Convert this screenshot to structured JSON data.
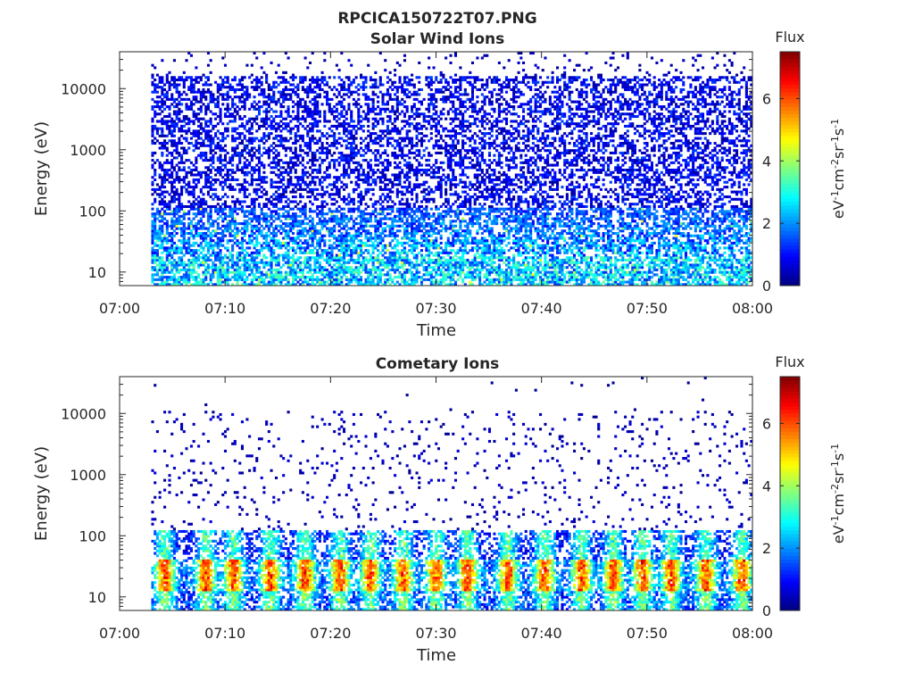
{
  "figure": {
    "title": "RPCICA150722T07.PNG"
  },
  "chart_data": [
    {
      "type": "heatmap",
      "title": "Solar Wind Ions",
      "xlabel": "Time",
      "ylabel": "Energy (eV)",
      "x_range": [
        "07:00",
        "08:00"
      ],
      "data_start": "07:03",
      "x_ticks": [
        "07:00",
        "07:10",
        "07:20",
        "07:30",
        "07:40",
        "07:50",
        "08:00"
      ],
      "y_scale": "log",
      "y_range": [
        6,
        40000
      ],
      "y_ticks": [
        10,
        100,
        1000,
        10000
      ],
      "colorbar": {
        "title": "Flux",
        "label": "eV-1cm-2sr-1s-1",
        "range": [
          0,
          7.5
        ],
        "ticks": [
          0,
          2,
          4,
          6
        ],
        "colormap": "jet"
      },
      "pattern": "sparse low flux (0-2) across all energies, moderate flux (2-4) below ~100 eV"
    },
    {
      "type": "heatmap",
      "title": "Cometary Ions",
      "xlabel": "Time",
      "ylabel": "Energy (eV)",
      "x_range": [
        "07:00",
        "08:00"
      ],
      "data_start": "07:03",
      "x_ticks": [
        "07:00",
        "07:10",
        "07:20",
        "07:30",
        "07:40",
        "07:50",
        "08:00"
      ],
      "y_scale": "log",
      "y_range": [
        6,
        40000
      ],
      "y_ticks": [
        10,
        100,
        1000,
        10000
      ],
      "colorbar": {
        "title": "Flux",
        "label": "eV-1cm-2sr-1s-1",
        "range": [
          0,
          7.5
        ],
        "ticks": [
          0,
          2,
          4,
          6
        ],
        "colormap": "jet"
      },
      "peak_times_min": [
        4.3,
        8.2,
        10.8,
        14.3,
        17.6,
        20.9,
        23.8,
        26.9,
        30.0,
        33.0,
        36.8,
        40.3,
        43.8,
        46.8,
        49.6,
        52.3,
        55.6,
        59.0
      ],
      "peak_energy_ev": 25,
      "peak_flux": 5.5,
      "pattern": "periodic intense bursts at 15-60 eV, sparse low flux above 100 eV"
    }
  ]
}
